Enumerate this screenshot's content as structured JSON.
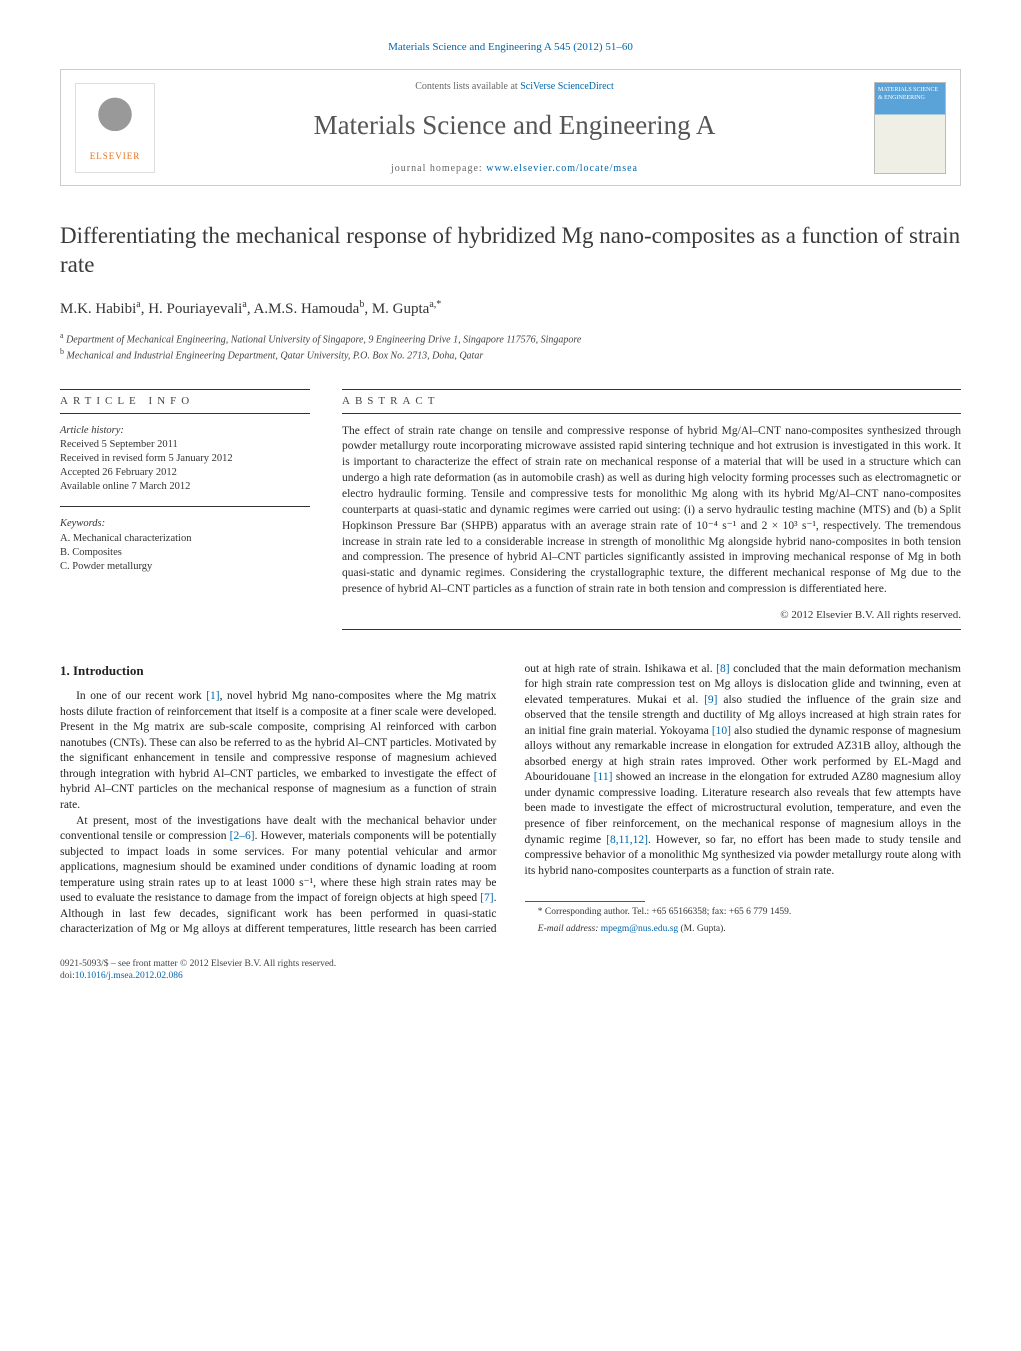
{
  "journal_ref_pre": "Materials Science and Engineering A 545 (2012) 51–60",
  "header": {
    "contents_pre": "Contents lists available at ",
    "contents_link": "SciVerse ScienceDirect",
    "journal_title": "Materials Science and Engineering A",
    "homepage_pre": "journal homepage: ",
    "homepage_link": "www.elsevier.com/locate/msea",
    "elsevier_word": "ELSEVIER",
    "cover_text": "MATERIALS SCIENCE & ENGINEERING"
  },
  "article": {
    "title": "Differentiating the mechanical response of hybridized Mg nano-composites as a function of strain rate",
    "authors_html": "M.K. Habibi<sup>a</sup>, H. Pouriayevali<sup>a</sup>, A.M.S. Hamouda<sup>b</sup>, M. Gupta<sup>a,*</sup>",
    "affil_a": "Department of Mechanical Engineering, National University of Singapore, 9 Engineering Drive 1, Singapore 117576, Singapore",
    "affil_b": "Mechanical and Industrial Engineering Department, Qatar University, P.O. Box No. 2713, Doha, Qatar"
  },
  "info": {
    "heading": "article info",
    "history_label": "Article history:",
    "received": "Received 5 September 2011",
    "revised": "Received in revised form 5 January 2012",
    "accepted": "Accepted 26 February 2012",
    "online": "Available online 7 March 2012",
    "keywords_label": "Keywords:",
    "k1": "A. Mechanical characterization",
    "k2": "B. Composites",
    "k3": "C. Powder metallurgy"
  },
  "abstract": {
    "heading": "abstract",
    "text": "The effect of strain rate change on tensile and compressive response of hybrid Mg/Al–CNT nano-composites synthesized through powder metallurgy route incorporating microwave assisted rapid sintering technique and hot extrusion is investigated in this work. It is important to characterize the effect of strain rate on mechanical response of a material that will be used in a structure which can undergo a high rate deformation (as in automobile crash) as well as during high velocity forming processes such as electromagnetic or electro hydraulic forming. Tensile and compressive tests for monolithic Mg along with its hybrid Mg/Al–CNT nano-composites counterparts at quasi-static and dynamic regimes were carried out using: (i) a servo hydraulic testing machine (MTS) and (b) a Split Hopkinson Pressure Bar (SHPB) apparatus with an average strain rate of 10⁻⁴ s⁻¹ and 2 × 10³ s⁻¹, respectively. The tremendous increase in strain rate led to a considerable increase in strength of monolithic Mg alongside hybrid nano-composites in both tension and compression. The presence of hybrid Al–CNT particles significantly assisted in improving mechanical response of Mg in both quasi-static and dynamic regimes. Considering the crystallographic texture, the different mechanical response of Mg due to the presence of hybrid Al–CNT particles as a function of strain rate in both tension and compression is differentiated here.",
    "copyright": "© 2012 Elsevier B.V. All rights reserved."
  },
  "body": {
    "section_heading": "1. Introduction",
    "p1_pre": "In one of our recent work ",
    "ref1": "[1]",
    "p1_post": ", novel hybrid Mg nano-composites where the Mg matrix hosts dilute fraction of reinforcement that itself is a composite at a finer scale were developed. Present in the Mg matrix are sub-scale composite, comprising Al reinforced with carbon nanotubes (CNTs). These can also be referred to as the hybrid Al–CNT particles. Motivated by the significant enhancement in tensile and compressive response of magnesium achieved through integration with hybrid Al–CNT particles, we embarked to investigate the effect of hybrid Al–CNT particles on the mechanical response of magnesium as a function of strain rate.",
    "p2_pre": "At present, most of the investigations have dealt with the mechanical behavior under conventional tensile or compression ",
    "ref2_6": "[2–6]",
    "p2_mid": ". However, materials components will be potentially subjected to impact loads in some services. For many potential vehicular and armor applications, magnesium should be examined under conditions of dynamic loading at room temperature using strain rates up to at least 1000 s⁻¹, where these high strain rates may be used to evaluate the resistance to damage from the impact of foreign objects at high speed ",
    "ref7": "[7]",
    "p2_post1": ". Although in last few decades, significant work has been performed in quasi-static characterization of Mg or Mg alloys at different temperatures, little research has been carried out at high rate of strain. Ishikawa et al. ",
    "ref8": "[8]",
    "p2_post2": " concluded that the main deformation mechanism for high strain rate compression test on Mg alloys is dislocation glide and twinning, even at elevated temperatures. Mukai et al. ",
    "ref9": "[9]",
    "p2_post3": " also studied the influence of the grain size and observed that the tensile strength and ductility of Mg alloys increased at high strain rates for an initial fine grain material. Yokoyama ",
    "ref10": "[10]",
    "p2_post4": " also studied the dynamic response of magnesium alloys without any remarkable increase in elongation for extruded AZ31B alloy, although the absorbed energy at high strain rates improved. Other work performed by EL-Magd and Abouridouane ",
    "ref11": "[11]",
    "p2_post5": " showed an increase in the elongation for extruded AZ80 magnesium alloy under dynamic compressive loading. Literature research also reveals that few attempts have been made to investigate the effect of microstructural evolution, temperature, and even the presence of fiber reinforcement, on the mechanical response of magnesium alloys in the dynamic regime ",
    "ref8_11_12": "[8,11,12]",
    "p2_post6": ". However, so far, no effort has been made to study tensile and compressive behavior of a monolithic Mg synthesized via powder metallurgy route along with its hybrid nano-composites counterparts as a function of strain rate."
  },
  "footnote": {
    "corr": "* Corresponding author. Tel.: +65 65166358; fax: +65 6 779 1459.",
    "email_label": "E-mail address: ",
    "email": "mpegm@nus.edu.sg",
    "email_who": " (M. Gupta)."
  },
  "bottom": {
    "issn_line": "0921-5093/$ – see front matter © 2012 Elsevier B.V. All rights reserved.",
    "doi_pre": "doi:",
    "doi": "10.1016/j.msea.2012.02.086"
  },
  "colors": {
    "link": "#0066aa",
    "text": "#333333",
    "rule": "#333333",
    "elsevier_orange": "#e9711c"
  }
}
